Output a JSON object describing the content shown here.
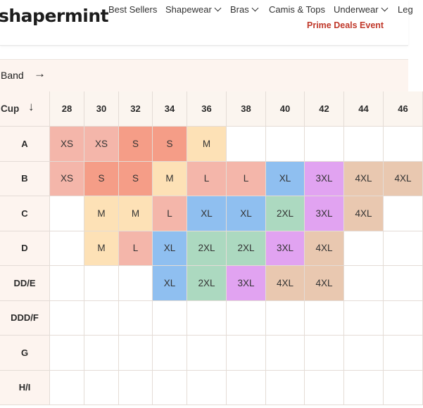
{
  "header": {
    "logo": "shapermint",
    "nav": [
      {
        "label": "Best Sellers",
        "dropdown": false
      },
      {
        "label": "Shapewear",
        "dropdown": true
      },
      {
        "label": "Bras",
        "dropdown": true
      },
      {
        "label": "Camis & Tops",
        "dropdown": false
      },
      {
        "label": "Underwear",
        "dropdown": true
      },
      {
        "label": "Leg",
        "dropdown": false
      }
    ],
    "promo": "Prime Deals Event"
  },
  "size_chart": {
    "band_label": "Band",
    "band_arrow": "→",
    "cup_label": "Cup",
    "cup_arrow": "↓",
    "bands": [
      "28",
      "30",
      "32",
      "34",
      "36",
      "38",
      "40",
      "42",
      "44",
      "46"
    ],
    "cups": [
      "A",
      "B",
      "C",
      "D",
      "DD/E",
      "DDD/F",
      "G",
      "H/I"
    ],
    "rows": [
      [
        "XS",
        "XS",
        "S",
        "S",
        "M",
        "",
        "",
        "",
        "",
        ""
      ],
      [
        "XS",
        "S",
        "S",
        "M",
        "L",
        "L",
        "XL",
        "3XL",
        "4XL",
        "4XL"
      ],
      [
        "",
        "M",
        "M",
        "L",
        "XL",
        "XL",
        "2XL",
        "3XL",
        "4XL",
        ""
      ],
      [
        "",
        "M",
        "L",
        "XL",
        "2XL",
        "2XL",
        "3XL",
        "4XL",
        "",
        ""
      ],
      [
        "",
        "",
        "",
        "XL",
        "2XL",
        "3XL",
        "4XL",
        "4XL",
        "",
        ""
      ],
      [
        "",
        "",
        "",
        "",
        "",
        "",
        "",
        "",
        "",
        ""
      ],
      [
        "",
        "",
        "",
        "",
        "",
        "",
        "",
        "",
        "",
        ""
      ],
      [
        "",
        "",
        "",
        "",
        "",
        "",
        "",
        "",
        "",
        ""
      ]
    ],
    "size_colors": {
      "XS": "#f4b6aa",
      "S": "#f59d87",
      "M": "#fde1b6",
      "L": "#f4b6aa",
      "XL": "#8fbff0",
      "2XL": "#acd9c0",
      "3XL": "#e1a3f1",
      "4XL": "#e9c8b0"
    },
    "promo_color": "#c0392b"
  }
}
